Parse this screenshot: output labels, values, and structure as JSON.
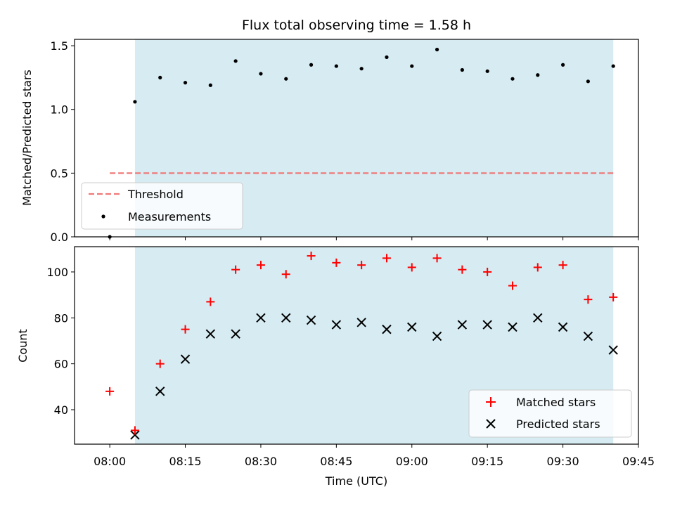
{
  "chart_data": [
    {
      "type": "scatter",
      "title": "Flux total observing time = 1.58 h",
      "xlabel": "",
      "ylabel": "Matched/Predicted stars",
      "ylim": [
        0,
        1.55
      ],
      "yticks": [
        0.0,
        0.5,
        1.0,
        1.5
      ],
      "ytick_labels": [
        "0.0",
        "0.5",
        "1.0",
        "1.5"
      ],
      "xlim_minutes": [
        -7,
        105
      ],
      "shaded_span_minutes": [
        5,
        100
      ],
      "colors": {
        "shade": "#add8e6",
        "threshold": "#f07878",
        "points": "#000000"
      },
      "threshold": {
        "name": "Threshold",
        "value": 0.5,
        "x_minutes": [
          0,
          100
        ]
      },
      "series": [
        {
          "name": "Measurements",
          "x_minutes": [
            0,
            5,
            10,
            15,
            20,
            25,
            30,
            35,
            40,
            45,
            50,
            55,
            60,
            65,
            70,
            75,
            80,
            85,
            90,
            95,
            100
          ],
          "values": [
            0.0,
            1.06,
            1.25,
            1.21,
            1.19,
            1.38,
            1.28,
            1.24,
            1.35,
            1.34,
            1.32,
            1.41,
            1.34,
            1.47,
            1.31,
            1.3,
            1.24,
            1.27,
            1.35,
            1.22,
            1.34
          ]
        }
      ],
      "legend": {
        "location": "lower-left",
        "entries": [
          "Threshold",
          "Measurements"
        ]
      }
    },
    {
      "type": "scatter",
      "title": "",
      "xlabel": "Time (UTC)",
      "ylabel": "Count",
      "ylim": [
        25,
        111
      ],
      "yticks": [
        40,
        60,
        80,
        100
      ],
      "ytick_labels": [
        "40",
        "60",
        "80",
        "100"
      ],
      "xlim_minutes": [
        -7,
        105
      ],
      "xticks_minutes": [
        0,
        15,
        30,
        45,
        60,
        75,
        90,
        105
      ],
      "xtick_labels": [
        "08:00",
        "08:15",
        "08:30",
        "08:45",
        "09:00",
        "09:15",
        "09:30",
        "09:45"
      ],
      "shaded_span_minutes": [
        5,
        100
      ],
      "colors": {
        "shade": "#add8e6",
        "matched": "#ff0000",
        "predicted": "#000000"
      },
      "series": [
        {
          "name": "Matched stars",
          "marker": "plus",
          "x_minutes": [
            0,
            5,
            10,
            15,
            20,
            25,
            30,
            35,
            40,
            45,
            50,
            55,
            60,
            65,
            70,
            75,
            80,
            85,
            90,
            95,
            100
          ],
          "values": [
            48,
            31,
            60,
            75,
            87,
            101,
            103,
            99,
            107,
            104,
            103,
            106,
            102,
            106,
            101,
            100,
            94,
            102,
            103,
            88,
            89
          ]
        },
        {
          "name": "Predicted stars",
          "marker": "x",
          "x_minutes": [
            5,
            10,
            15,
            20,
            25,
            30,
            35,
            40,
            45,
            50,
            55,
            60,
            65,
            70,
            75,
            80,
            85,
            90,
            95,
            100
          ],
          "values": [
            29,
            48,
            62,
            73,
            73,
            80,
            80,
            79,
            77,
            78,
            75,
            76,
            72,
            77,
            77,
            76,
            80,
            76,
            72,
            66
          ]
        }
      ],
      "legend": {
        "location": "lower-right",
        "entries": [
          "Matched stars",
          "Predicted stars"
        ]
      }
    }
  ]
}
